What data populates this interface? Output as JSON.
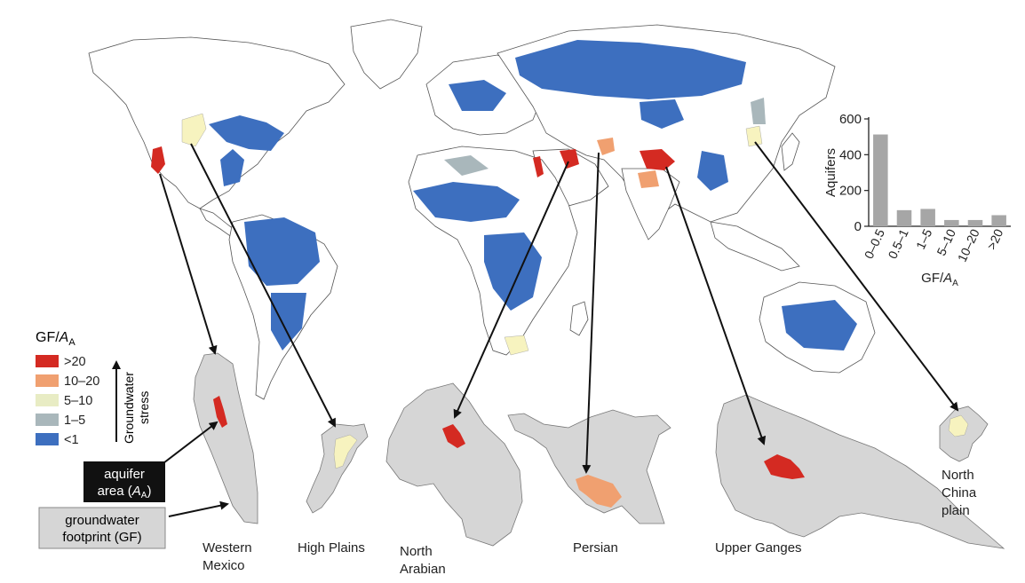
{
  "legend": {
    "title_main": "GF/",
    "title_italic": "A",
    "title_sub": "A",
    "items": [
      {
        "label": ">20",
        "color": "#d42a22"
      },
      {
        "label": "10–20",
        "color": "#f0a070"
      },
      {
        "label": "5–10",
        "color": "#e8ecc4"
      },
      {
        "label": "1–5",
        "color": "#a9b7bb"
      },
      {
        "label": "<1",
        "color": "#3d6fbf"
      }
    ],
    "stress_label_1": "Groundwater",
    "stress_label_2": "stress"
  },
  "callouts": {
    "aquifer_line1": "aquifer",
    "aquifer_line2_pre": "area (",
    "aquifer_line2_italic": "A",
    "aquifer_line2_sub": "A",
    "aquifer_line2_post": ")",
    "footprint_line1": "groundwater",
    "footprint_line2": "footprint (GF)"
  },
  "regions": [
    {
      "id": "western-mexico",
      "line1": "Western",
      "line2": "Mexico"
    },
    {
      "id": "high-plains",
      "line1": "High Plains",
      "line2": ""
    },
    {
      "id": "north-arabian",
      "line1": "North",
      "line2": "Arabian"
    },
    {
      "id": "persian",
      "line1": "Persian",
      "line2": ""
    },
    {
      "id": "upper-ganges",
      "line1": "Upper Ganges",
      "line2": ""
    },
    {
      "id": "north-china",
      "line1": "North",
      "line2": "China",
      "line3": "plain"
    }
  ],
  "chart_data": {
    "type": "bar",
    "categories": [
      "0–0.5",
      "0.5–1",
      "1–5",
      "5–10",
      "10–20",
      ">20"
    ],
    "values": [
      513,
      90,
      97,
      35,
      35,
      62
    ],
    "ylabel": "Aquifers",
    "xlabel_main": "GF/",
    "xlabel_italic": "A",
    "xlabel_sub": "A",
    "ylim": [
      0,
      600
    ],
    "yticks": [
      0,
      200,
      400,
      600
    ],
    "bar_color": "#a6a6a6"
  }
}
